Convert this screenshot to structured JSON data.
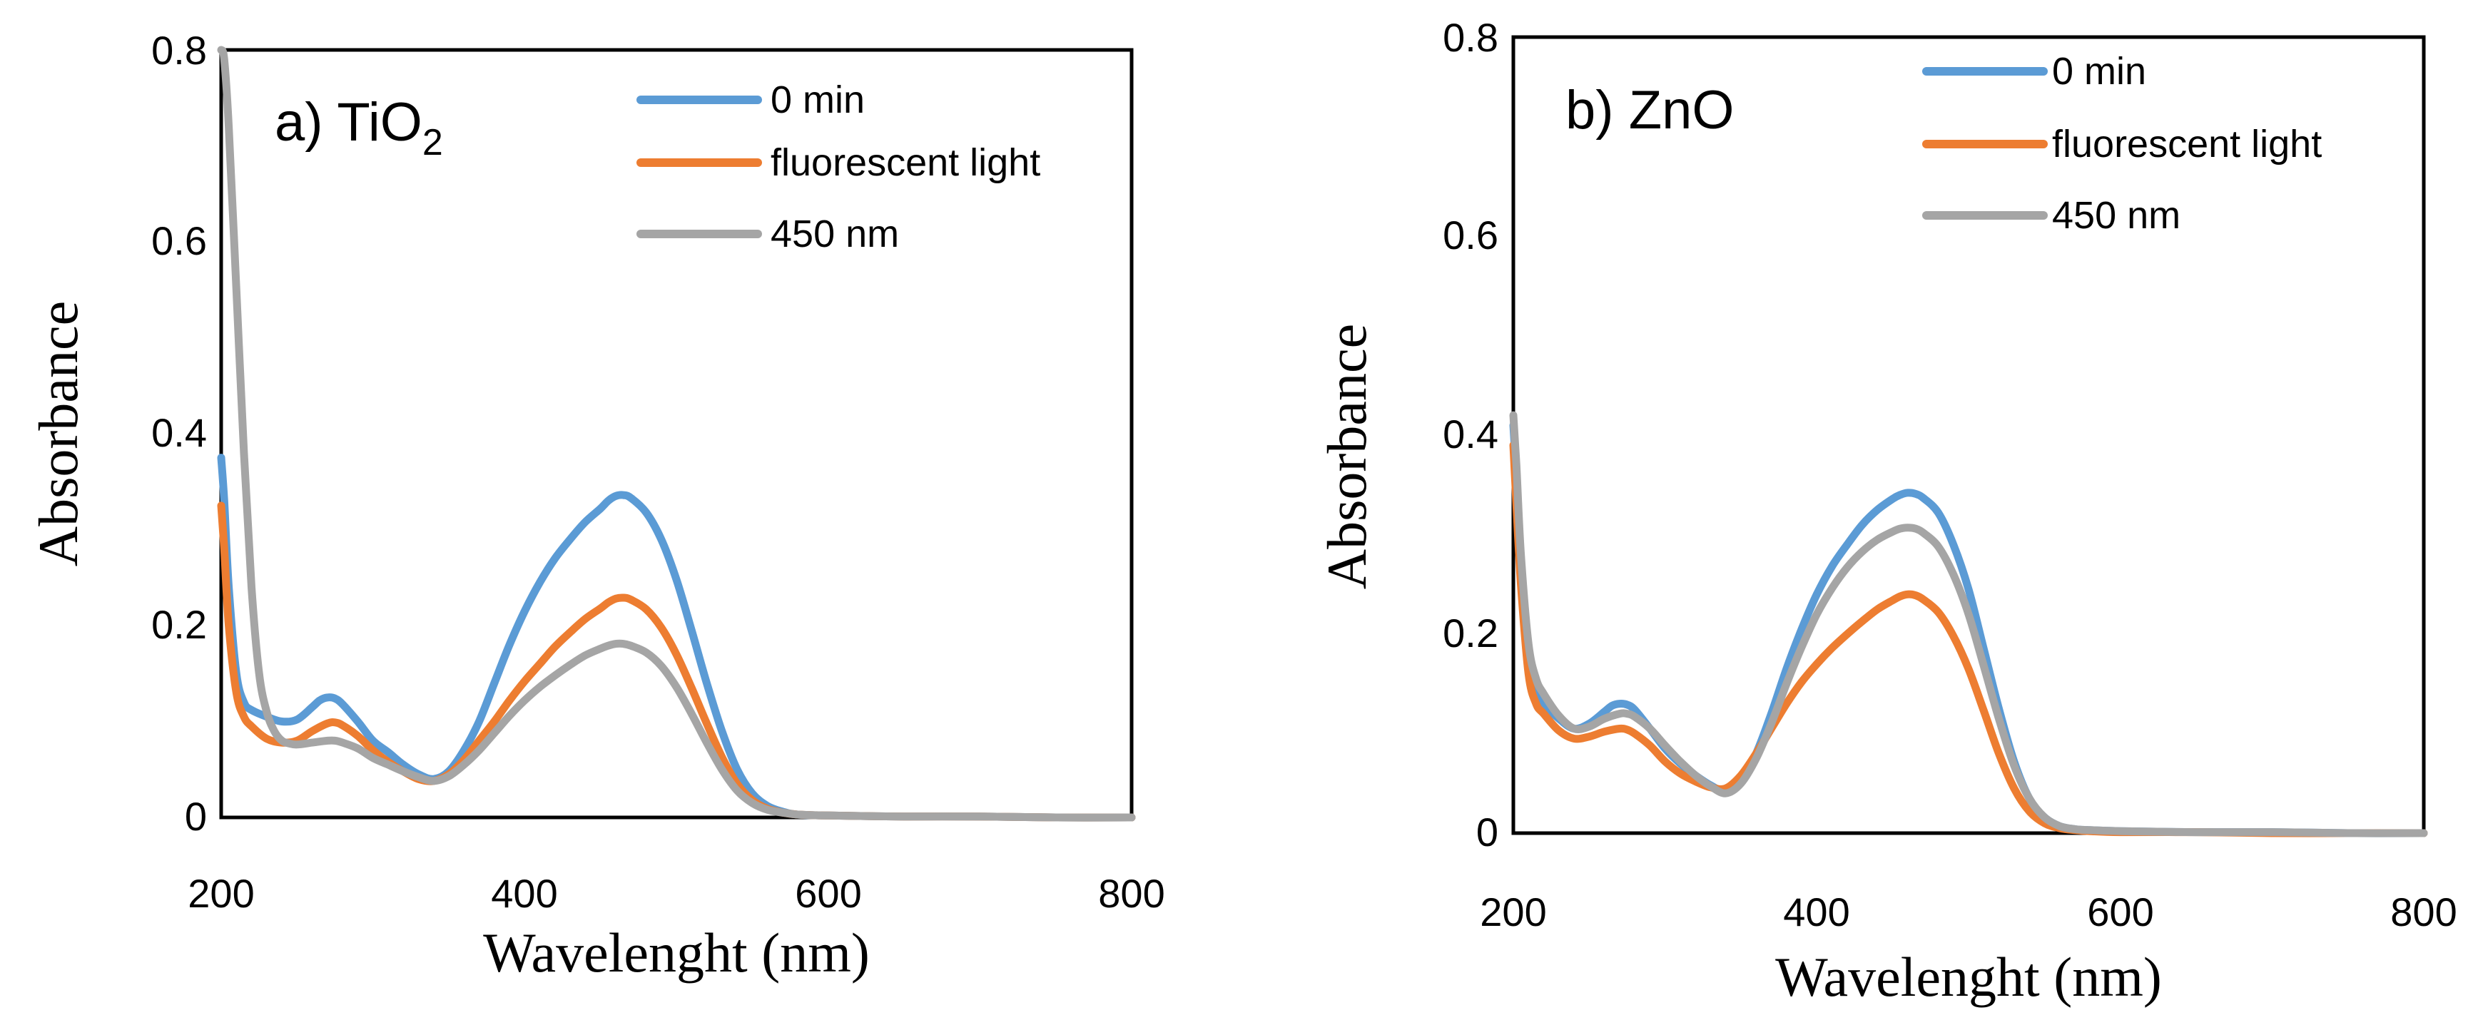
{
  "chart_data": [
    {
      "type": "line",
      "panel": "a",
      "title": "a) TiO",
      "title_subscript": "2",
      "xlabel": "Wavelenght (nm)",
      "ylabel": "Absorbance",
      "xlim": [
        200,
        800
      ],
      "ylim": [
        0,
        0.8
      ],
      "xticks": [
        "200",
        "400",
        "600",
        "800"
      ],
      "yticks": [
        "0",
        "0.2",
        "0.4",
        "0.6",
        "0.8"
      ],
      "grid": false,
      "legend_position": "top-right",
      "series": [
        {
          "name": "0 min",
          "color": "#5B9BD5",
          "x": [
            200,
            202,
            205,
            210,
            215,
            220,
            230,
            240,
            250,
            260,
            265,
            270,
            275,
            280,
            290,
            300,
            310,
            320,
            330,
            340,
            350,
            360,
            370,
            380,
            390,
            400,
            410,
            420,
            430,
            440,
            450,
            455,
            460,
            465,
            470,
            480,
            490,
            500,
            510,
            520,
            530,
            540,
            550,
            560,
            570,
            580,
            600,
            650,
            700,
            750,
            800
          ],
          "y": [
            0.375,
            0.33,
            0.24,
            0.15,
            0.12,
            0.112,
            0.105,
            0.1,
            0.102,
            0.115,
            0.122,
            0.125,
            0.124,
            0.118,
            0.1,
            0.08,
            0.068,
            0.055,
            0.045,
            0.04,
            0.048,
            0.07,
            0.1,
            0.14,
            0.18,
            0.215,
            0.245,
            0.27,
            0.29,
            0.308,
            0.322,
            0.33,
            0.335,
            0.336,
            0.333,
            0.318,
            0.29,
            0.248,
            0.195,
            0.14,
            0.09,
            0.05,
            0.025,
            0.012,
            0.006,
            0.003,
            0.002,
            0.001,
            0.001,
            0.0,
            0.0
          ]
        },
        {
          "name": "fluorescent light",
          "color": "#ED7D31",
          "x": [
            200,
            202,
            205,
            210,
            215,
            220,
            230,
            240,
            250,
            260,
            270,
            275,
            280,
            290,
            300,
            310,
            320,
            330,
            340,
            350,
            360,
            370,
            380,
            390,
            400,
            410,
            420,
            430,
            440,
            450,
            455,
            460,
            465,
            470,
            480,
            490,
            500,
            510,
            520,
            530,
            540,
            550,
            560,
            570,
            580,
            600,
            650,
            700,
            750,
            800
          ],
          "y": [
            0.325,
            0.28,
            0.2,
            0.13,
            0.105,
            0.095,
            0.082,
            0.078,
            0.08,
            0.09,
            0.098,
            0.099,
            0.096,
            0.085,
            0.07,
            0.058,
            0.048,
            0.04,
            0.038,
            0.045,
            0.06,
            0.08,
            0.1,
            0.122,
            0.142,
            0.16,
            0.178,
            0.193,
            0.207,
            0.218,
            0.224,
            0.228,
            0.229,
            0.227,
            0.217,
            0.198,
            0.17,
            0.135,
            0.098,
            0.063,
            0.035,
            0.018,
            0.009,
            0.005,
            0.003,
            0.002,
            0.001,
            0.001,
            0.0,
            0.0
          ]
        },
        {
          "name": "450 nm",
          "color": "#A5A5A5",
          "x": [
            200,
            202,
            205,
            210,
            215,
            220,
            225,
            230,
            235,
            240,
            245,
            250,
            260,
            270,
            275,
            280,
            290,
            300,
            310,
            320,
            330,
            340,
            350,
            360,
            370,
            380,
            390,
            400,
            410,
            420,
            430,
            440,
            450,
            455,
            460,
            465,
            470,
            480,
            490,
            500,
            510,
            520,
            530,
            540,
            550,
            560,
            570,
            580,
            600,
            650,
            700,
            750,
            800
          ],
          "y": [
            0.8,
            0.79,
            0.72,
            0.55,
            0.38,
            0.24,
            0.15,
            0.11,
            0.09,
            0.08,
            0.077,
            0.076,
            0.078,
            0.08,
            0.08,
            0.078,
            0.072,
            0.062,
            0.055,
            0.048,
            0.042,
            0.038,
            0.043,
            0.055,
            0.07,
            0.088,
            0.106,
            0.122,
            0.136,
            0.148,
            0.159,
            0.169,
            0.176,
            0.179,
            0.181,
            0.181,
            0.179,
            0.172,
            0.158,
            0.136,
            0.108,
            0.078,
            0.05,
            0.028,
            0.015,
            0.008,
            0.005,
            0.003,
            0.002,
            0.001,
            0.001,
            0.0,
            0.0
          ]
        }
      ]
    },
    {
      "type": "line",
      "panel": "b",
      "title": "b) ZnO",
      "xlabel": "Wavelenght (nm)",
      "ylabel": "Absorbance",
      "xlim": [
        200,
        800
      ],
      "ylim": [
        0,
        0.8
      ],
      "xticks": [
        "200",
        "400",
        "600",
        "800"
      ],
      "yticks": [
        "0",
        "0.2",
        "0.4",
        "0.6",
        "0.8"
      ],
      "grid": false,
      "legend_position": "top-right",
      "series": [
        {
          "name": "0 min",
          "color": "#5B9BD5",
          "x": [
            200,
            202,
            205,
            210,
            215,
            220,
            230,
            240,
            250,
            260,
            265,
            270,
            275,
            280,
            290,
            300,
            310,
            320,
            330,
            340,
            350,
            360,
            370,
            380,
            390,
            400,
            410,
            420,
            430,
            440,
            450,
            455,
            460,
            465,
            470,
            480,
            490,
            500,
            510,
            520,
            530,
            540,
            550,
            560,
            570,
            580,
            600,
            650,
            700,
            750,
            800
          ],
          "y": [
            0.41,
            0.36,
            0.27,
            0.17,
            0.14,
            0.13,
            0.115,
            0.105,
            0.11,
            0.122,
            0.128,
            0.13,
            0.129,
            0.124,
            0.105,
            0.085,
            0.07,
            0.058,
            0.048,
            0.042,
            0.052,
            0.08,
            0.12,
            0.165,
            0.205,
            0.24,
            0.268,
            0.29,
            0.31,
            0.325,
            0.336,
            0.34,
            0.342,
            0.341,
            0.337,
            0.322,
            0.29,
            0.245,
            0.185,
            0.125,
            0.072,
            0.035,
            0.016,
            0.007,
            0.004,
            0.003,
            0.002,
            0.001,
            0.001,
            0.0,
            0.0
          ]
        },
        {
          "name": "fluorescent light",
          "color": "#ED7D31",
          "x": [
            200,
            202,
            205,
            210,
            215,
            220,
            230,
            240,
            250,
            260,
            270,
            275,
            280,
            290,
            300,
            310,
            320,
            330,
            340,
            350,
            360,
            370,
            380,
            390,
            400,
            410,
            420,
            430,
            440,
            450,
            455,
            460,
            465,
            470,
            480,
            490,
            500,
            510,
            520,
            530,
            540,
            550,
            560,
            570,
            580,
            600,
            650,
            700,
            750,
            800
          ],
          "y": [
            0.39,
            0.33,
            0.25,
            0.16,
            0.13,
            0.12,
            0.103,
            0.095,
            0.097,
            0.102,
            0.105,
            0.104,
            0.1,
            0.088,
            0.072,
            0.06,
            0.052,
            0.046,
            0.045,
            0.058,
            0.08,
            0.105,
            0.13,
            0.152,
            0.17,
            0.186,
            0.2,
            0.213,
            0.225,
            0.234,
            0.238,
            0.24,
            0.239,
            0.235,
            0.222,
            0.198,
            0.165,
            0.123,
            0.08,
            0.045,
            0.022,
            0.01,
            0.005,
            0.003,
            0.002,
            0.001,
            0.001,
            0.0,
            0.0,
            0.0
          ]
        },
        {
          "name": "450 nm",
          "color": "#A5A5A5",
          "x": [
            200,
            202,
            205,
            210,
            215,
            220,
            230,
            240,
            250,
            260,
            270,
            275,
            280,
            290,
            300,
            310,
            320,
            330,
            340,
            350,
            360,
            370,
            380,
            390,
            400,
            410,
            420,
            430,
            440,
            450,
            455,
            460,
            465,
            470,
            480,
            490,
            500,
            510,
            520,
            530,
            540,
            550,
            560,
            570,
            580,
            600,
            650,
            700,
            750,
            800
          ],
          "y": [
            0.42,
            0.37,
            0.28,
            0.19,
            0.155,
            0.14,
            0.118,
            0.105,
            0.107,
            0.115,
            0.12,
            0.12,
            0.117,
            0.105,
            0.088,
            0.072,
            0.058,
            0.047,
            0.04,
            0.05,
            0.075,
            0.11,
            0.15,
            0.187,
            0.22,
            0.246,
            0.267,
            0.283,
            0.295,
            0.303,
            0.306,
            0.307,
            0.306,
            0.302,
            0.288,
            0.26,
            0.22,
            0.168,
            0.115,
            0.068,
            0.035,
            0.016,
            0.007,
            0.004,
            0.003,
            0.002,
            0.001,
            0.001,
            0.0,
            0.0
          ]
        }
      ]
    }
  ]
}
